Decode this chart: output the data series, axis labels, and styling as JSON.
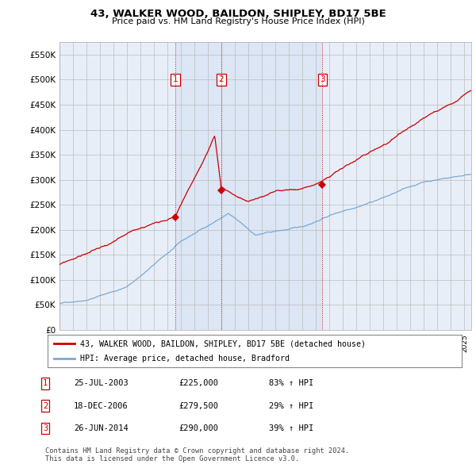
{
  "title": "43, WALKER WOOD, BAILDON, SHIPLEY, BD17 5BE",
  "subtitle": "Price paid vs. HM Land Registry's House Price Index (HPI)",
  "ytick_values": [
    0,
    50000,
    100000,
    150000,
    200000,
    250000,
    300000,
    350000,
    400000,
    450000,
    500000,
    550000
  ],
  "ylim": [
    0,
    575000
  ],
  "xlim": [
    1995,
    2025.5
  ],
  "sale_dates_num": [
    2003.56,
    2006.97,
    2014.48
  ],
  "sale_prices": [
    225000,
    279500,
    290000
  ],
  "sale_labels": [
    "1",
    "2",
    "3"
  ],
  "legend_property": "43, WALKER WOOD, BAILDON, SHIPLEY, BD17 5BE (detached house)",
  "legend_hpi": "HPI: Average price, detached house, Bradford",
  "table_rows": [
    [
      "1",
      "25-JUL-2003",
      "£225,000",
      "83% ↑ HPI"
    ],
    [
      "2",
      "18-DEC-2006",
      "£279,500",
      "29% ↑ HPI"
    ],
    [
      "3",
      "26-JUN-2014",
      "£290,000",
      "39% ↑ HPI"
    ]
  ],
  "footer": "Contains HM Land Registry data © Crown copyright and database right 2024.\nThis data is licensed under the Open Government Licence v3.0.",
  "property_line_color": "#cc0000",
  "hpi_line_color": "#7aaad4",
  "vline_color": "#cc0000",
  "grid_color": "#cccccc",
  "bg_color": "#ffffff",
  "plot_bg_color": "#e8eef8",
  "shade_color": "#dce6f5"
}
